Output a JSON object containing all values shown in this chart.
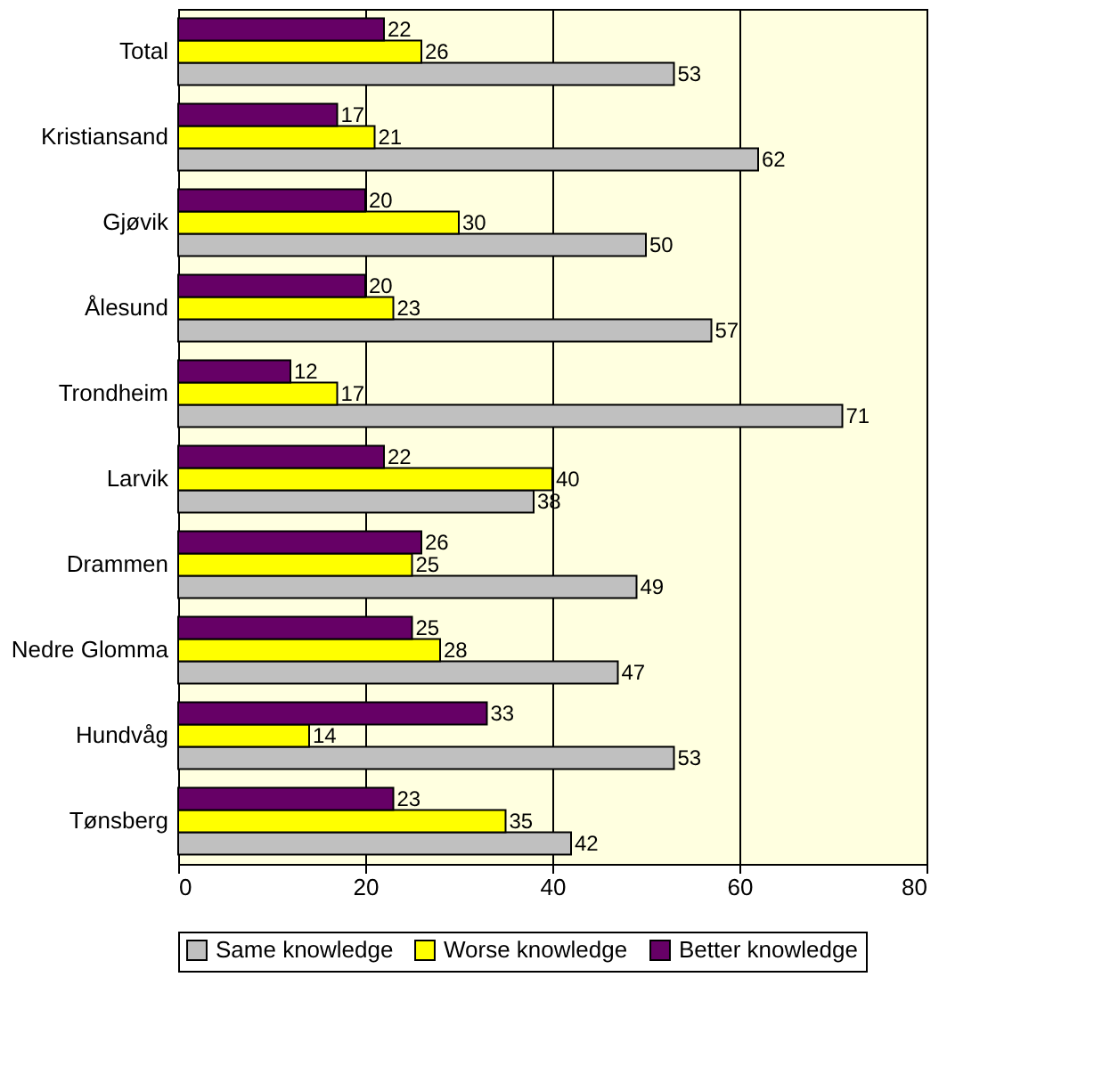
{
  "chart_data": {
    "type": "bar",
    "orientation": "horizontal",
    "categories": [
      "Total",
      "Kristiansand",
      "Gjøvik",
      "Ålesund",
      "Trondheim",
      "Larvik",
      "Drammen",
      "Nedre Glomma",
      "Hundvåg",
      "Tønsberg"
    ],
    "series": [
      {
        "name": "Same knowledge",
        "color": "#c0c0c0",
        "values": [
          53,
          62,
          50,
          57,
          71,
          38,
          49,
          47,
          53,
          42
        ]
      },
      {
        "name": "Worse knowledge",
        "color": "#ffff00",
        "values": [
          26,
          21,
          30,
          23,
          17,
          40,
          25,
          28,
          14,
          35
        ]
      },
      {
        "name": "Better knowledge",
        "color": "#660066",
        "values": [
          22,
          17,
          20,
          20,
          12,
          22,
          26,
          25,
          33,
          23
        ]
      }
    ],
    "xlim": [
      0,
      80
    ],
    "xticks": [
      0,
      20,
      40,
      60,
      80
    ],
    "grid": "x",
    "legend": "bottom",
    "data_labels": true
  }
}
